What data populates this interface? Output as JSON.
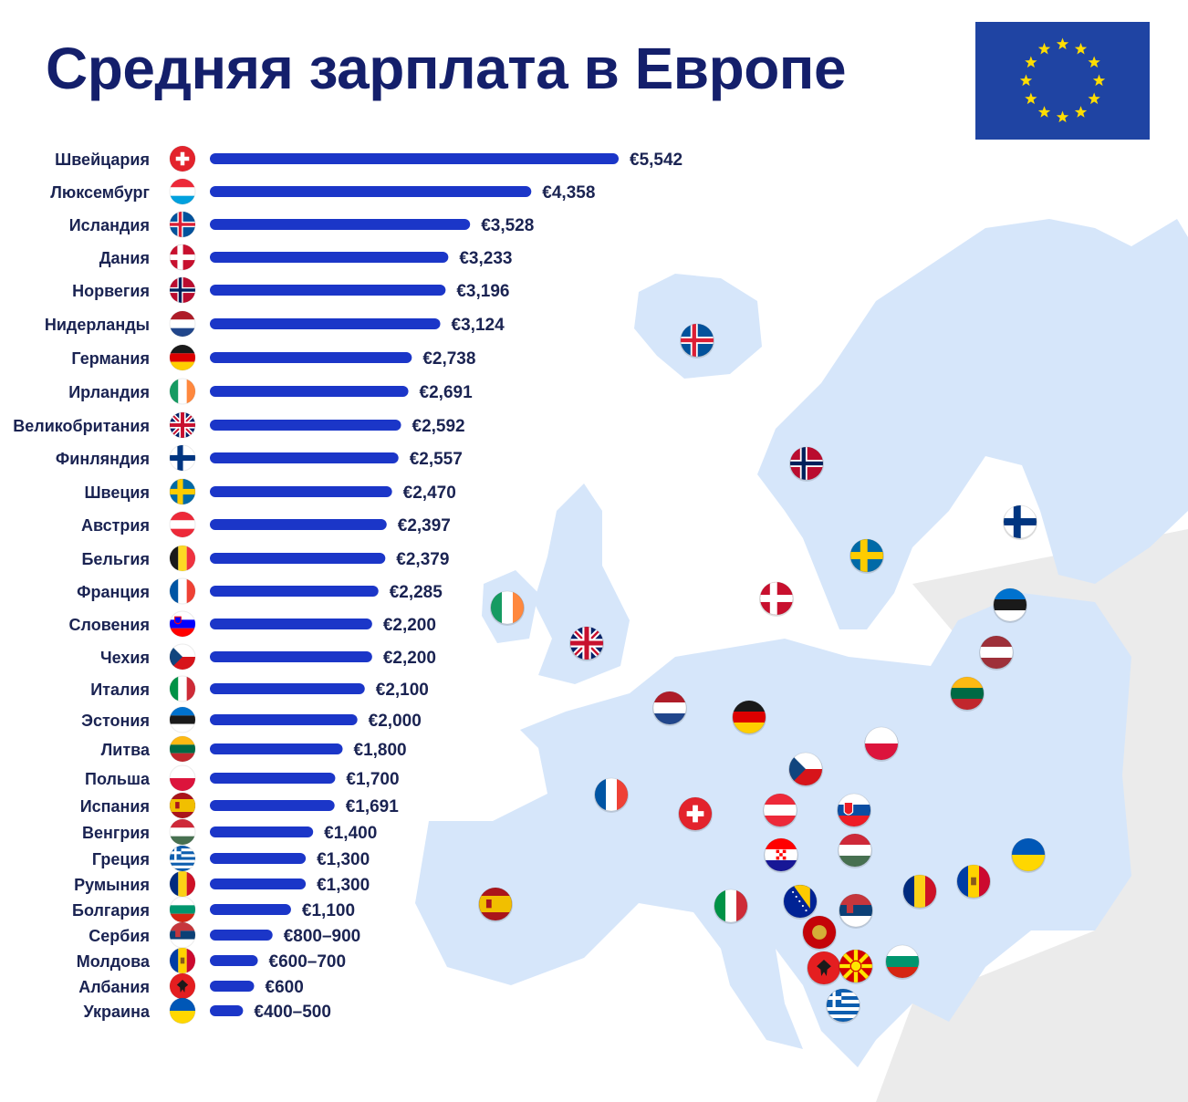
{
  "title": "Средняя зарплата в Европе",
  "colors": {
    "bar": "#1b36c8",
    "title": "#141f6b",
    "label": "#1a2352",
    "map_land": "#d6e6fa",
    "map_other": "#ebebeb",
    "eu_blue": "#1f44a3",
    "eu_star": "#ffdd00"
  },
  "chart_data": {
    "type": "bar",
    "orientation": "horizontal",
    "categories": [
      "Швейцария",
      "Люксембург",
      "Исландия",
      "Дания",
      "Норвегия",
      "Нидерланды",
      "Германия",
      "Ирландия",
      "Великобритания",
      "Финляндия",
      "Швеция",
      "Австрия",
      "Бельгия",
      "Франция",
      "Словения",
      "Чехия",
      "Италия",
      "Эстония",
      "Литва",
      "Польша",
      "Испания",
      "Венгрия",
      "Греция",
      "Румыния",
      "Болгария",
      "Сербия",
      "Молдова",
      "Албания",
      "Украина"
    ],
    "values": [
      5542,
      4358,
      3528,
      3233,
      3196,
      3124,
      2738,
      2691,
      2592,
      2557,
      2470,
      2397,
      2379,
      2285,
      2200,
      2200,
      2100,
      2000,
      1800,
      1700,
      1691,
      1400,
      1300,
      1300,
      1100,
      850,
      650,
      600,
      450
    ],
    "value_labels": [
      "€5,542",
      "€4,358",
      "€3,528",
      "€3,233",
      "€3,196",
      "€3,124",
      "€2,738",
      "€2,691",
      "€2,592",
      "€2,557",
      "€2,470",
      "€2,397",
      "€2,379",
      "€2,285",
      "€2,200",
      "€2,200",
      "€2,100",
      "€2,000",
      "€1,800",
      "€1,700",
      "€1,691",
      "€1,400",
      "€1,300",
      "€1,300",
      "€1,100",
      "€800–900",
      "€600–700",
      "€600",
      "€400–500"
    ],
    "flags": [
      "ch",
      "lu",
      "is",
      "dk",
      "no",
      "nl",
      "de",
      "ie",
      "gb",
      "fi",
      "se",
      "at",
      "be",
      "fr",
      "si",
      "cz",
      "it",
      "ee",
      "lt",
      "pl",
      "es",
      "hu",
      "gr",
      "ro",
      "bg",
      "rs",
      "md",
      "al",
      "ua"
    ],
    "xlim": [
      0,
      5542
    ],
    "grid": false,
    "legend": "none"
  },
  "map": {
    "flags": [
      "is",
      "no",
      "se",
      "fi",
      "ee",
      "lv",
      "lt",
      "dk",
      "ie",
      "gb",
      "nl",
      "de",
      "pl",
      "fr",
      "ch",
      "cz",
      "at",
      "sk",
      "hr",
      "hu",
      "ua",
      "es",
      "it",
      "ba",
      "rs",
      "ro",
      "md",
      "me",
      "al",
      "mk",
      "bg",
      "gr"
    ]
  }
}
